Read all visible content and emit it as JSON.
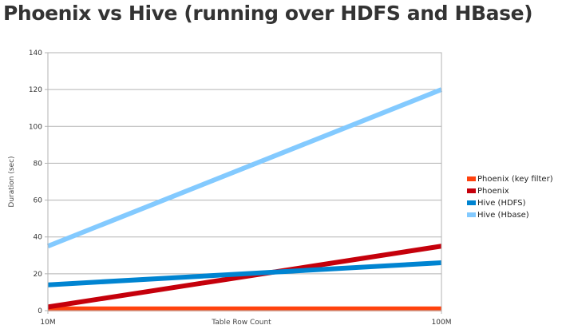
{
  "title": "Phoenix vs Hive (running over HDFS and HBase)",
  "chart_data": {
    "type": "line",
    "title": "Phoenix vs Hive (running over HDFS and HBase)",
    "xlabel": "Table Row Count",
    "ylabel": "Duration (sec)",
    "categories": [
      "10M",
      "100M"
    ],
    "ylim": [
      0,
      140
    ],
    "yticks": [
      0,
      20,
      40,
      60,
      80,
      100,
      120,
      140
    ],
    "grid": true,
    "legend_position": "right",
    "series": [
      {
        "name": "Phoenix (key filter)",
        "color": "#ff420e",
        "values": [
          1,
          1
        ]
      },
      {
        "name": "Phoenix",
        "color": "#c5000b",
        "values": [
          2,
          35
        ]
      },
      {
        "name": "Hive (HDFS)",
        "color": "#0084d1",
        "values": [
          14,
          26
        ]
      },
      {
        "name": "Hive (Hbase)",
        "color": "#83caff",
        "values": [
          35,
          120
        ]
      }
    ]
  }
}
